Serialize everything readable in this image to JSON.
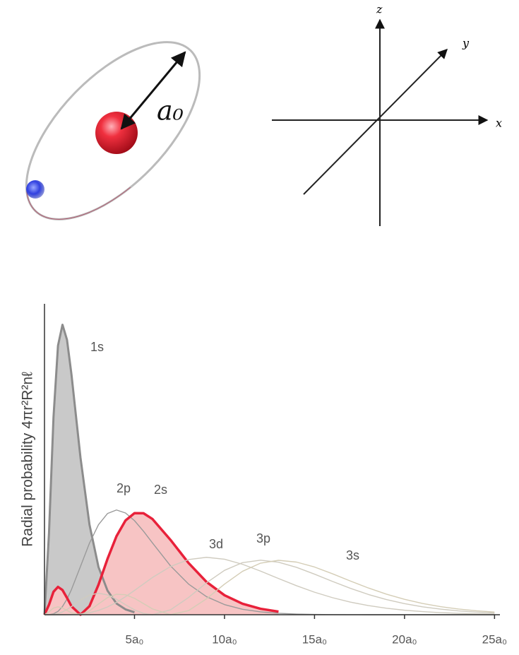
{
  "figure": {
    "radius_label": "a₀",
    "axis_labels": {
      "x": "x",
      "y": "y",
      "z": "z"
    }
  },
  "chart_data": {
    "type": "line",
    "y_label": "Radial probability 4πr²R²nℓ",
    "x": [
      0,
      0.25,
      0.5,
      0.75,
      1,
      1.25,
      1.5,
      2,
      2.5,
      3,
      3.5,
      4,
      4.5,
      5,
      5.5,
      6,
      7,
      8,
      9,
      10,
      11,
      12,
      13,
      14,
      15,
      16,
      17,
      18,
      19,
      20,
      21,
      22,
      23,
      24,
      25
    ],
    "xlim": [
      0,
      25.3
    ],
    "ylim": [
      0,
      0.58
    ],
    "xticks": [
      {
        "value": 5,
        "label": "5a₀"
      },
      {
        "value": 10,
        "label": "10a₀"
      },
      {
        "value": 15,
        "label": "15a₀"
      },
      {
        "value": 20,
        "label": "20a₀"
      },
      {
        "value": 25,
        "label": "25a₀"
      }
    ],
    "series": [
      {
        "name": "1s",
        "color": "#8c8c8c",
        "fill": "#c9c9c9",
        "values": [
          0,
          0.152,
          0.368,
          0.502,
          0.541,
          0.513,
          0.448,
          0.293,
          0.168,
          0.089,
          0.045,
          0.021,
          0.01,
          0.0045,
          null,
          null,
          null,
          null,
          null,
          null,
          null,
          null,
          null,
          null,
          null,
          null,
          null,
          null,
          null,
          null,
          null,
          null,
          null,
          null,
          null
        ]
      },
      {
        "name": "2p",
        "color": "#9a9a9a",
        "values": [
          0,
          0.0001,
          0.0016,
          0.0062,
          0.0153,
          0.0291,
          0.0471,
          0.0902,
          0.1336,
          0.168,
          0.1888,
          0.1954,
          0.1898,
          0.1755,
          0.1558,
          0.1339,
          0.0912,
          0.0573,
          0.0337,
          0.0189,
          0.0102,
          0.0053,
          0.0027,
          0.0013,
          0.0006,
          0.0003,
          0.0001,
          0,
          0,
          0,
          0,
          0,
          0,
          0,
          0
        ]
      },
      {
        "name": "2s",
        "color": "#e8213a",
        "fill": "#f7c4c4",
        "values": [
          0,
          0.0186,
          0.0427,
          0.0519,
          0.046,
          0.0315,
          0.0157,
          0,
          0.016,
          0.056,
          0.1041,
          0.1465,
          0.1758,
          0.1895,
          0.1893,
          0.1785,
          0.1396,
          0.0966,
          0.0612,
          0.0363,
          0.0205,
          0.0111,
          0.0058,
          null,
          null,
          null,
          null,
          null,
          null,
          null,
          null,
          null,
          null,
          null,
          null
        ]
      },
      {
        "name": "3d",
        "color": "#cfcbbf",
        "values": [
          0,
          0,
          0,
          0,
          0,
          0.0001,
          0.0003,
          0.0014,
          0.0037,
          0.008,
          0.0145,
          0.0231,
          0.0336,
          0.0453,
          0.0575,
          0.0695,
          0.0899,
          0.1029,
          0.1071,
          0.1035,
          0.0941,
          0.0814,
          0.0676,
          0.0541,
          0.042,
          0.0318,
          0.0235,
          0.017,
          0.0121,
          0.0084,
          0.0058,
          0.0039,
          0.0026,
          0.0017,
          0.0011
        ]
      },
      {
        "name": "3p",
        "color": "#cfcbbf",
        "values": [
          0,
          0,
          0.0006,
          0.0021,
          0.0052,
          0.0097,
          0.0153,
          0.0274,
          0.0367,
          0.0401,
          0.037,
          0.0289,
          0.0187,
          0.0091,
          0.0024,
          0,
          0.0092,
          0.0321,
          0.0595,
          0.0828,
          0.0972,
          0.1018,
          0.0979,
          0.0884,
          0.0757,
          0.0621,
          0.0492,
          0.0377,
          0.0282,
          0.0207,
          0.0148,
          0.0104,
          0.0072,
          0.0049,
          0.0033
        ]
      },
      {
        "name": "3s",
        "color": "#d4cdb6",
        "values": [
          0,
          0.0055,
          0.0125,
          0.0148,
          0.0126,
          0.008,
          0.0034,
          0.0002,
          0.0073,
          0.02,
          0.0319,
          0.0382,
          0.0373,
          0.0306,
          0.0208,
          0.0109,
          0.0001,
          0.0076,
          0.0297,
          0.0571,
          0.081,
          0.0962,
          0.1015,
          0.0982,
          0.089,
          0.0764,
          0.0628,
          0.0498,
          0.0383,
          0.0287,
          0.021,
          0.0151,
          0.0106,
          0.0073,
          0.005
        ]
      }
    ]
  }
}
